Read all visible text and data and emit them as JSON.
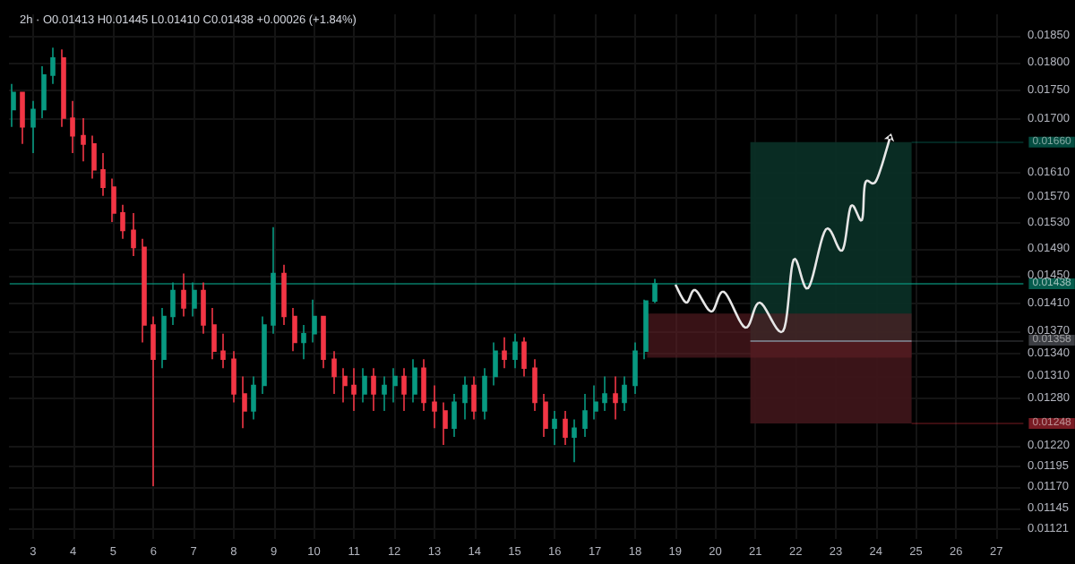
{
  "chart_data": {
    "type": "candlestick",
    "title": "2h · O0.01413 H0.01445 L0.01410 C0.01438 +0.00026 (+1.84%)",
    "x": [
      2.5,
      2.75,
      3,
      3.25,
      3.5,
      3.75,
      4,
      4.25,
      4.5,
      4.75,
      5,
      5.25,
      5.5,
      5.75,
      6,
      6.25,
      6.5,
      6.75,
      7,
      7.25,
      7.5,
      7.75,
      8,
      8.25,
      8.5,
      8.75,
      9,
      9.25,
      9.5,
      9.75,
      10,
      10.25,
      10.5,
      10.75,
      11,
      11.25,
      11.5,
      11.75,
      12,
      12.25,
      12.5,
      12.75,
      13,
      13.25,
      13.5,
      13.75,
      14,
      14.25,
      14.5,
      14.75,
      15,
      15.25,
      15.5,
      15.75,
      16,
      16.25,
      16.5,
      16.75,
      17,
      17.25,
      17.5,
      17.75,
      18,
      18.25,
      18.5
    ],
    "ohlc": [
      [
        0.01716,
        0.01761,
        0.01686,
        0.01746
      ],
      [
        0.01746,
        0.01746,
        0.01657,
        0.01686
      ],
      [
        0.01686,
        0.01731,
        0.01642,
        0.01716
      ],
      [
        0.01716,
        0.01793,
        0.01701,
        0.01777
      ],
      [
        0.01777,
        0.01827,
        0.01761,
        0.01808
      ],
      [
        0.01808,
        0.01824,
        0.01686,
        0.01701
      ],
      [
        0.01701,
        0.01731,
        0.01642,
        0.01671
      ],
      [
        0.01671,
        0.01701,
        0.01628,
        0.01657
      ],
      [
        0.01657,
        0.01671,
        0.016,
        0.01614
      ],
      [
        0.01614,
        0.01642,
        0.01572,
        0.01586
      ],
      [
        0.01586,
        0.016,
        0.01531,
        0.01545
      ],
      [
        0.01545,
        0.01558,
        0.01505,
        0.01518
      ],
      [
        0.01518,
        0.01545,
        0.01479,
        0.01492
      ],
      [
        0.01492,
        0.01505,
        0.01355,
        0.01379
      ],
      [
        0.01379,
        0.01391,
        0.01171,
        0.01332
      ],
      [
        0.01332,
        0.01403,
        0.0132,
        0.01391
      ],
      [
        0.01391,
        0.0144,
        0.01379,
        0.01428
      ],
      [
        0.01428,
        0.01453,
        0.01391,
        0.01403
      ],
      [
        0.01403,
        0.0144,
        0.01391,
        0.01428
      ],
      [
        0.01428,
        0.0144,
        0.01367,
        0.01379
      ],
      [
        0.01379,
        0.01403,
        0.01332,
        0.01343
      ],
      [
        0.01343,
        0.01367,
        0.0132,
        0.01332
      ],
      [
        0.01332,
        0.01343,
        0.01275,
        0.01286
      ],
      [
        0.01286,
        0.01309,
        0.01242,
        0.01264
      ],
      [
        0.01264,
        0.01309,
        0.01253,
        0.01297
      ],
      [
        0.01297,
        0.01391,
        0.01286,
        0.01379
      ],
      [
        0.01379,
        0.01523,
        0.01367,
        0.01453
      ],
      [
        0.01453,
        0.01466,
        0.01379,
        0.01391
      ],
      [
        0.01391,
        0.01403,
        0.01343,
        0.01355
      ],
      [
        0.01355,
        0.01379,
        0.01332,
        0.01367
      ],
      [
        0.01367,
        0.01415,
        0.01355,
        0.01391
      ],
      [
        0.01391,
        0.01391,
        0.0132,
        0.01332
      ],
      [
        0.01332,
        0.01343,
        0.01286,
        0.01309
      ],
      [
        0.01309,
        0.0132,
        0.01275,
        0.01297
      ],
      [
        0.01297,
        0.0132,
        0.01264,
        0.01286
      ],
      [
        0.01286,
        0.0132,
        0.01275,
        0.01309
      ],
      [
        0.01309,
        0.0132,
        0.01264,
        0.01286
      ],
      [
        0.01286,
        0.01309,
        0.01264,
        0.01297
      ],
      [
        0.01297,
        0.0132,
        0.01275,
        0.01309
      ],
      [
        0.01309,
        0.0132,
        0.01264,
        0.01286
      ],
      [
        0.01286,
        0.01332,
        0.01275,
        0.0132
      ],
      [
        0.0132,
        0.01332,
        0.01264,
        0.01275
      ],
      [
        0.01275,
        0.01297,
        0.01242,
        0.01264
      ],
      [
        0.01264,
        0.01275,
        0.01221,
        0.01242
      ],
      [
        0.01242,
        0.01286,
        0.01231,
        0.01275
      ],
      [
        0.01275,
        0.01309,
        0.01253,
        0.01297
      ],
      [
        0.01297,
        0.01309,
        0.01253,
        0.01264
      ],
      [
        0.01264,
        0.0132,
        0.01253,
        0.01309
      ],
      [
        0.01309,
        0.01355,
        0.01297,
        0.01343
      ],
      [
        0.01343,
        0.01362,
        0.0132,
        0.01332
      ],
      [
        0.01332,
        0.01367,
        0.0132,
        0.01355
      ],
      [
        0.01355,
        0.01362,
        0.01309,
        0.0132
      ],
      [
        0.0132,
        0.01332,
        0.01264,
        0.01275
      ],
      [
        0.01275,
        0.01286,
        0.01231,
        0.01242
      ],
      [
        0.01242,
        0.01264,
        0.01221,
        0.01253
      ],
      [
        0.01253,
        0.01264,
        0.01221,
        0.01231
      ],
      [
        0.01231,
        0.01253,
        0.012,
        0.01242
      ],
      [
        0.01242,
        0.01286,
        0.01231,
        0.01264
      ],
      [
        0.01264,
        0.01297,
        0.01253,
        0.01275
      ],
      [
        0.01275,
        0.01309,
        0.01264,
        0.01286
      ],
      [
        0.01286,
        0.01309,
        0.01253,
        0.01275
      ],
      [
        0.01275,
        0.01309,
        0.01264,
        0.01297
      ],
      [
        0.01297,
        0.01355,
        0.01286,
        0.01343
      ],
      [
        0.01343,
        0.01415,
        0.01332,
        0.01413
      ],
      [
        0.01413,
        0.01445,
        0.0141,
        0.01438
      ]
    ],
    "log": "y",
    "xlim": [
      2.4,
      27.6
    ],
    "xticks": [
      3,
      4,
      5,
      6,
      7,
      8,
      9,
      10,
      11,
      12,
      13,
      14,
      15,
      16,
      17,
      18,
      19,
      20,
      21,
      22,
      23,
      24,
      25,
      26,
      27
    ],
    "ylim": [
      0.0111,
      0.0189
    ],
    "yticks": [
      {
        "value": 0.0185,
        "label": "0.01850"
      },
      {
        "value": 0.018,
        "label": "0.01800"
      },
      {
        "value": 0.0175,
        "label": "0.01750"
      },
      {
        "value": 0.017,
        "label": "0.01700"
      },
      {
        "value": 0.0161,
        "label": "0.01610"
      },
      {
        "value": 0.0157,
        "label": "0.01570"
      },
      {
        "value": 0.0153,
        "label": "0.01530"
      },
      {
        "value": 0.0149,
        "label": "0.01490"
      },
      {
        "value": 0.0145,
        "label": "0.01450"
      },
      {
        "value": 0.0141,
        "label": "0.01410"
      },
      {
        "value": 0.0137,
        "label": "0.01370"
      },
      {
        "value": 0.0134,
        "label": "0.01340"
      },
      {
        "value": 0.0131,
        "label": "0.01310"
      },
      {
        "value": 0.0128,
        "label": "0.01280"
      },
      {
        "value": 0.0122,
        "label": "0.01220"
      },
      {
        "value": 0.01195,
        "label": "0.01195"
      },
      {
        "value": 0.0117,
        "label": "0.01170"
      },
      {
        "value": 0.01145,
        "label": "0.01145"
      },
      {
        "value": 0.01121,
        "label": "0.01121"
      }
    ],
    "grid": true,
    "ref_lines": [
      {
        "axis": "y",
        "value": 0.01438,
        "label": "0.01438",
        "color": "#089981"
      },
      {
        "axis": "y",
        "value": 0.01358,
        "label": "0.01358",
        "color": "#787b86"
      }
    ],
    "bands": [
      {
        "axis": "y",
        "from": 0.01358,
        "to": 0.0166,
        "label": "0.01660",
        "color": "#0a2e25"
      },
      {
        "axis": "y",
        "from": 0.01248,
        "to": 0.01358,
        "label": "0.01248",
        "color": "#3d1519"
      },
      {
        "axis": "y",
        "from": 0.01334,
        "to": 0.01395,
        "color": "#5e1e24"
      }
    ]
  }
}
